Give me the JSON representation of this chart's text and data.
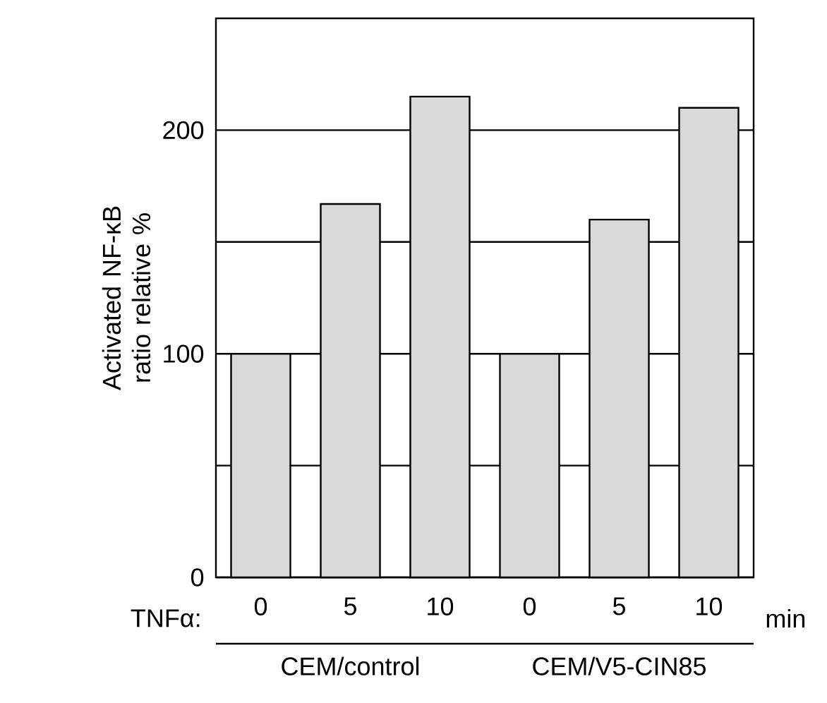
{
  "chart_data": {
    "type": "bar",
    "ylabel": "Activated NF-κB ratio relative %",
    "categories": [
      "0",
      "5",
      "10",
      "0",
      "5",
      "10"
    ],
    "values": [
      100,
      167,
      215,
      100,
      160,
      210
    ],
    "color": "#d9d9d9",
    "ylim": [
      0,
      250
    ],
    "yticks": [
      0,
      {
        "value": 50,
        "label": null
      },
      100,
      {
        "value": 150,
        "label": null
      },
      200
    ],
    "grid": "y",
    "annotations": [
      "TNFα:",
      "min",
      "CEM/control",
      "CEM/V5-CIN85"
    ]
  }
}
